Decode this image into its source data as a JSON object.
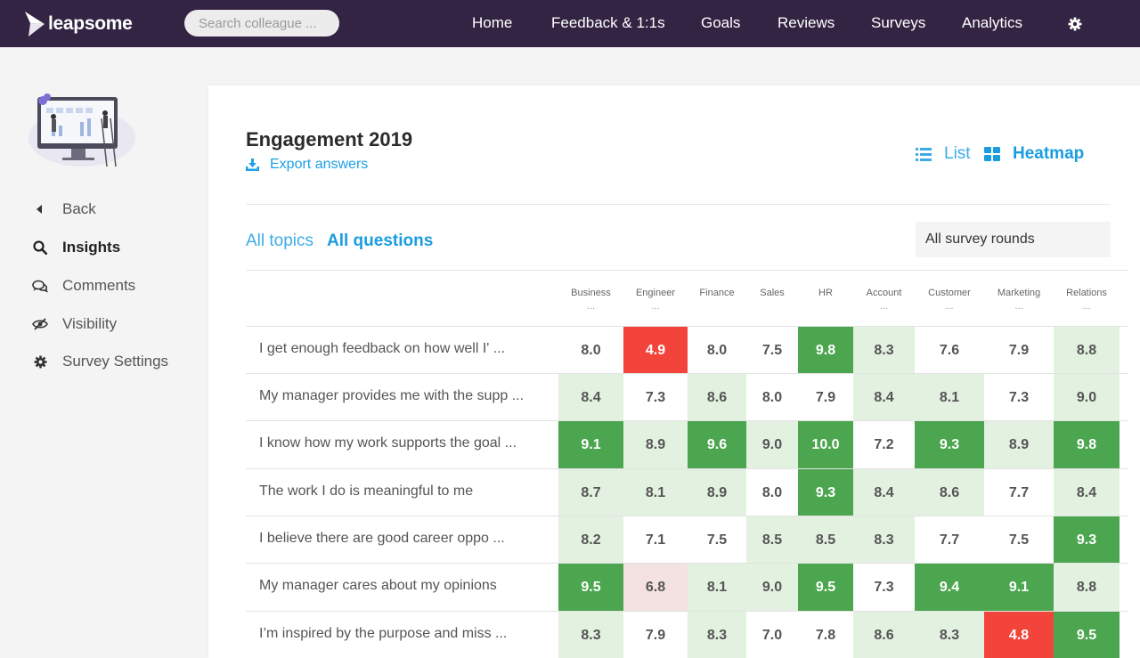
{
  "brand": {
    "name": "leapsome"
  },
  "search": {
    "placeholder": "Search colleague ..."
  },
  "nav": {
    "items": [
      "Home",
      "Feedback & 1:1s",
      "Goals",
      "Reviews",
      "Surveys",
      "Analytics"
    ],
    "settings_icon": "gear-icon"
  },
  "sidebar": {
    "items": [
      {
        "label": "Back",
        "icon": "caret-left-icon"
      },
      {
        "label": "Insights",
        "icon": "search-icon",
        "active": true
      },
      {
        "label": "Comments",
        "icon": "comments-icon"
      },
      {
        "label": "Visibility",
        "icon": "eye-slash-icon"
      },
      {
        "label": "Survey Settings",
        "icon": "gear-icon"
      }
    ]
  },
  "survey": {
    "title": "Engagement 2019",
    "export_label": "Export answers",
    "view_list": "List",
    "view_heatmap": "Heatmap",
    "tab_topics": "All topics",
    "tab_questions": "All questions",
    "rounds_select": "All survey rounds"
  },
  "heatmap": {
    "columns": [
      {
        "name": "Business",
        "truncated": "..."
      },
      {
        "name": "Engineer",
        "truncated": "..."
      },
      {
        "name": "Finance",
        "truncated": ""
      },
      {
        "name": "Sales",
        "truncated": ""
      },
      {
        "name": "HR",
        "truncated": ""
      },
      {
        "name": "Account",
        "truncated": "..."
      },
      {
        "name": "Customer",
        "truncated": "..."
      },
      {
        "name": "Marketing",
        "truncated": "..."
      },
      {
        "name": "Relations",
        "truncated": "..."
      }
    ],
    "rows": [
      {
        "question": "I get enough feedback on how well I' ...",
        "values": [
          "8.0",
          "4.9",
          "8.0",
          "7.5",
          "9.8",
          "8.3",
          "7.6",
          "7.9",
          "8.8"
        ]
      },
      {
        "question": "My manager provides me with the supp ...",
        "values": [
          "8.4",
          "7.3",
          "8.6",
          "8.0",
          "7.9",
          "8.4",
          "8.1",
          "7.3",
          "9.0"
        ]
      },
      {
        "question": "I know how my work supports the goal ...",
        "values": [
          "9.1",
          "8.9",
          "9.6",
          "9.0",
          "10.0",
          "7.2",
          "9.3",
          "8.9",
          "9.8"
        ]
      },
      {
        "question": "The work I do is meaningful to me",
        "values": [
          "8.7",
          "8.1",
          "8.9",
          "8.0",
          "9.3",
          "8.4",
          "8.6",
          "7.7",
          "8.4"
        ]
      },
      {
        "question": "I believe there are good career oppo ...",
        "values": [
          "8.2",
          "7.1",
          "7.5",
          "8.5",
          "8.5",
          "8.3",
          "7.7",
          "7.5",
          "9.3"
        ]
      },
      {
        "question": "My manager cares about my opinions",
        "values": [
          "9.5",
          "6.8",
          "8.1",
          "9.0",
          "9.5",
          "7.3",
          "9.4",
          "9.1",
          "8.8"
        ]
      },
      {
        "question": "I’m inspired by the purpose and miss ...",
        "values": [
          "8.3",
          "7.9",
          "8.3",
          "7.0",
          "7.8",
          "8.6",
          "8.3",
          "4.8",
          "9.5"
        ]
      }
    ],
    "levels": [
      [
        "none",
        "red",
        "none",
        "none",
        "strong",
        "light",
        "none",
        "none",
        "light"
      ],
      [
        "light",
        "none",
        "light",
        "none",
        "none",
        "light",
        "light",
        "none",
        "light"
      ],
      [
        "strong",
        "light",
        "strong",
        "light",
        "strong",
        "none",
        "strong",
        "light",
        "strong"
      ],
      [
        "light",
        "light",
        "light",
        "none",
        "strong",
        "light",
        "light",
        "none",
        "light"
      ],
      [
        "light",
        "none",
        "none",
        "light",
        "light",
        "light",
        "none",
        "none",
        "strong"
      ],
      [
        "strong",
        "pink",
        "light",
        "light",
        "strong",
        "none",
        "strong",
        "strong",
        "light"
      ],
      [
        "light",
        "none",
        "light",
        "none",
        "none",
        "light",
        "light",
        "red",
        "strong"
      ]
    ],
    "colors": {
      "strong": "#4ca64f",
      "light": "#e3f1e1",
      "red": "#f2443b",
      "pink": "#f4e1e1",
      "none": "#ffffff"
    }
  }
}
